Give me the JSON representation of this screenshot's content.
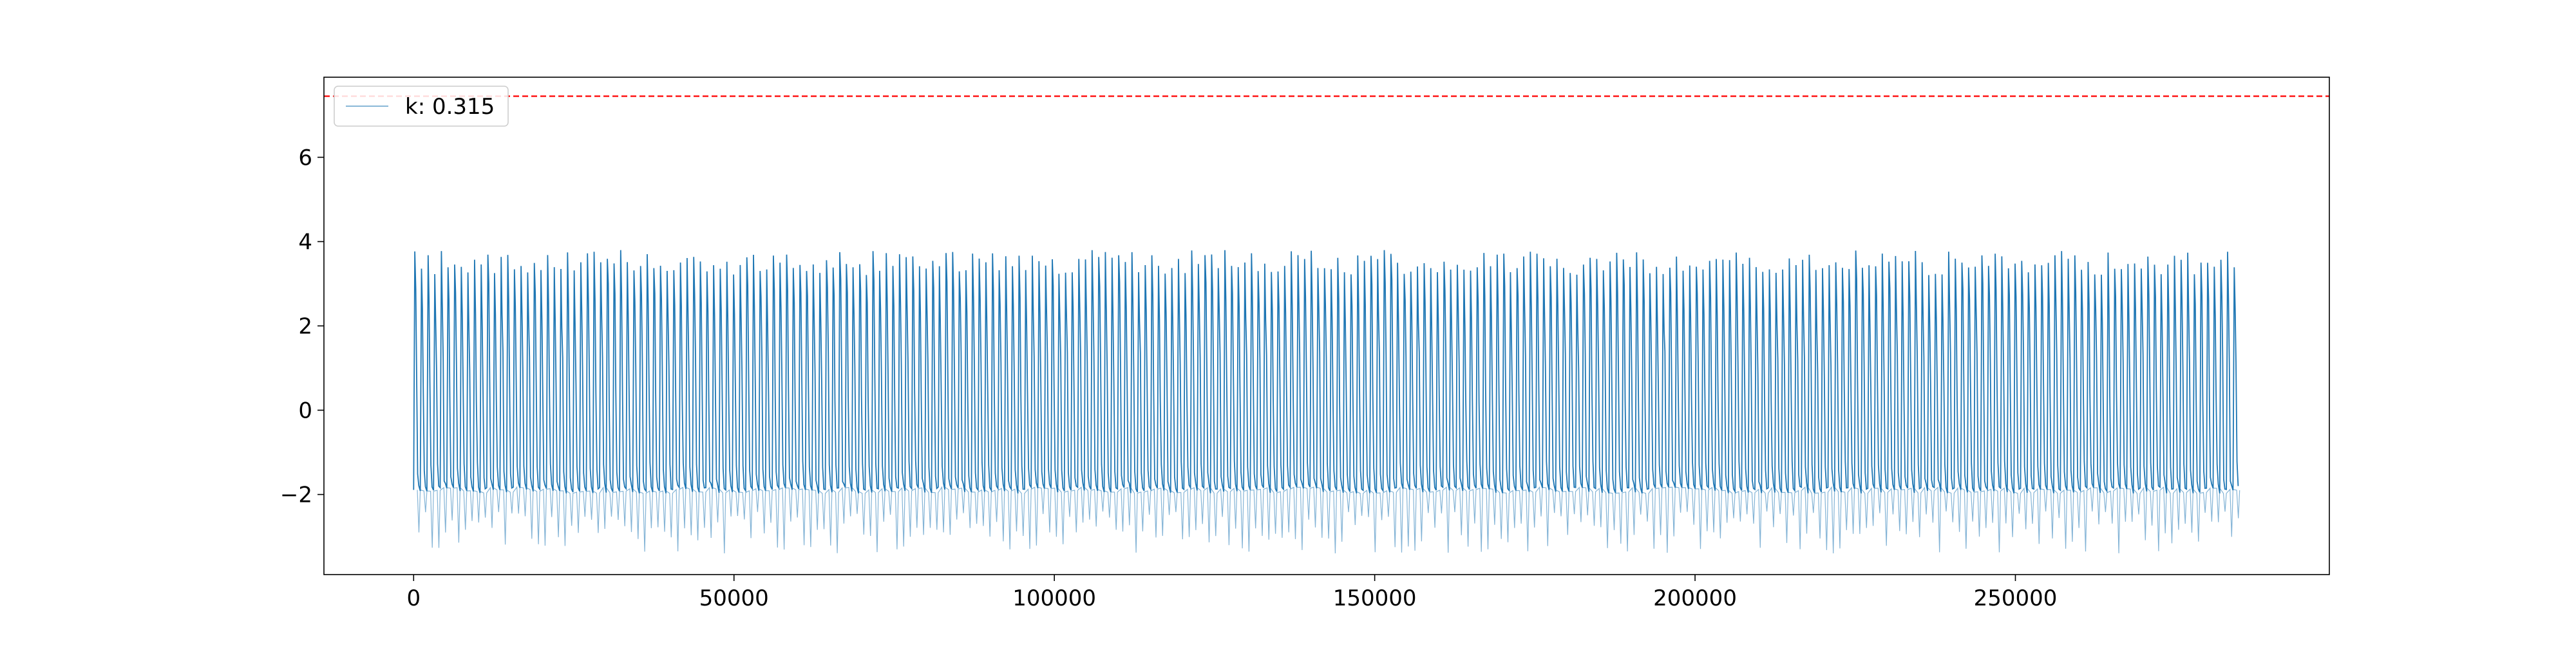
{
  "chart_data": {
    "type": "line",
    "title": "",
    "xlabel": "",
    "ylabel": "",
    "xlim": [
      -14000,
      299000
    ],
    "ylim": [
      -3.9,
      7.9
    ],
    "x_ticks": [
      0,
      50000,
      100000,
      150000,
      200000,
      250000
    ],
    "x_tick_labels": [
      "0",
      "50000",
      "100000",
      "150000",
      "200000",
      "250000"
    ],
    "y_ticks": [
      -2,
      0,
      2,
      4,
      6
    ],
    "y_tick_labels": [
      "−2",
      "0",
      "2",
      "4",
      "6"
    ],
    "grid": false,
    "legend": {
      "placement": "top-left",
      "entries": [
        {
          "label": "k: 0.315",
          "color": "#1f77b4"
        }
      ]
    },
    "series": [
      {
        "name": "k: 0.315",
        "color": "#1f77b4",
        "x_start": 0,
        "x_end": 285000,
        "cycles": 275,
        "peak_range": [
          3.2,
          3.8
        ],
        "trough_range": [
          -3.4,
          -2.4
        ],
        "baseline_floor": -1.9
      }
    ],
    "reference_lines": [
      {
        "orientation": "horizontal",
        "y": 7.45,
        "color": "#ff0000",
        "style": "dashed"
      }
    ]
  }
}
